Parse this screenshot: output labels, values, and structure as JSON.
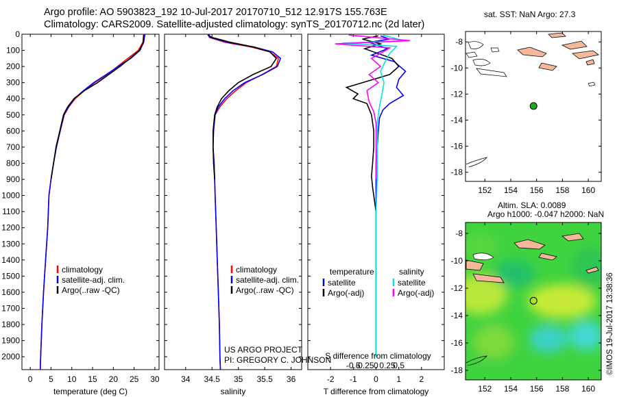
{
  "header": {
    "title_line1": "Argo profile: AO 5903823_192 10-Jul-2017 20170710_512 12.917S 155.763E",
    "title_line2": "Climatology: CARS2009. Satellite-adjusted climatology: synTS_20170712.nc (2d later)"
  },
  "map_top": {
    "label": "sat. SST: NaN Argo: 27.3"
  },
  "map_bottom": {
    "label1": "Altim. SLA: 0.0089",
    "label2": "Argo h1000: -0.047 h2000: NaN"
  },
  "timestamp": "©IMOS 19-Jul-2017 13:38:36",
  "credits": {
    "line1": "US ARGO PROJECT",
    "line2": "PI: GREGORY C. JOHNSON"
  },
  "colors": {
    "climatology": "#ff0000",
    "satellite": "#0000ff",
    "argo": "#000000",
    "sal_sat": "#00e5e5",
    "sal_argo": "#ff00ff",
    "land": "#f4b89a",
    "marker": "#22aa22"
  },
  "chart_data": [
    {
      "type": "line",
      "xlabel": "temperature (deg C)",
      "xlim": [
        -2,
        31
      ],
      "ylim": [
        2080,
        0
      ],
      "xticks": [
        0,
        5,
        10,
        15,
        20,
        25,
        30
      ],
      "yticks": [
        0,
        100,
        200,
        300,
        400,
        500,
        600,
        700,
        800,
        900,
        1000,
        1100,
        1200,
        1300,
        1400,
        1500,
        1600,
        1700,
        1800,
        1900,
        2000
      ],
      "legend": [
        "climatology",
        "satellite-adj. clim.",
        "Argo(..raw -QC)"
      ],
      "series": [
        {
          "name": "climatology",
          "color": "#ff0000",
          "points": [
            [
              27.3,
              0
            ],
            [
              27.1,
              50
            ],
            [
              26.0,
              100
            ],
            [
              23.5,
              150
            ],
            [
              21.0,
              200
            ],
            [
              18.5,
              250
            ],
            [
              15.5,
              300
            ],
            [
              13.0,
              350
            ],
            [
              10.8,
              400
            ],
            [
              9.3,
              450
            ],
            [
              8.2,
              500
            ],
            [
              7.2,
              600
            ],
            [
              6.3,
              700
            ],
            [
              5.6,
              800
            ],
            [
              5.0,
              900
            ],
            [
              4.5,
              1000
            ],
            [
              4.2,
              1200
            ],
            [
              3.7,
              1400
            ],
            [
              3.2,
              1600
            ],
            [
              2.8,
              1800
            ],
            [
              2.5,
              2000
            ],
            [
              2.4,
              2080
            ]
          ]
        },
        {
          "name": "satellite-adj. clim.",
          "color": "#0000ff",
          "points": [
            [
              27.6,
              0
            ],
            [
              27.3,
              50
            ],
            [
              26.4,
              100
            ],
            [
              24.2,
              150
            ],
            [
              21.2,
              200
            ],
            [
              18.3,
              250
            ],
            [
              15.3,
              300
            ],
            [
              12.8,
              350
            ],
            [
              10.6,
              400
            ],
            [
              9.2,
              450
            ],
            [
              8.1,
              500
            ],
            [
              7.2,
              600
            ],
            [
              6.3,
              700
            ],
            [
              5.6,
              800
            ],
            [
              5.0,
              900
            ],
            [
              4.5,
              1000
            ],
            [
              4.2,
              1200
            ],
            [
              3.7,
              1400
            ],
            [
              3.2,
              1600
            ],
            [
              2.8,
              1800
            ],
            [
              2.5,
              2000
            ],
            [
              2.4,
              2080
            ]
          ]
        },
        {
          "name": "Argo(..raw -QC)",
          "color": "#000000",
          "points": [
            [
              27.3,
              5
            ],
            [
              27.2,
              50
            ],
            [
              26.3,
              100
            ],
            [
              24.0,
              150
            ],
            [
              21.6,
              200
            ],
            [
              18.9,
              250
            ],
            [
              16.2,
              300
            ],
            [
              13.0,
              350
            ],
            [
              10.5,
              400
            ],
            [
              9.0,
              450
            ],
            [
              8.0,
              500
            ],
            [
              7.1,
              600
            ],
            [
              6.2,
              700
            ],
            [
              5.6,
              800
            ],
            [
              5.0,
              900
            ]
          ]
        }
      ]
    },
    {
      "type": "line",
      "xlabel": "salinity",
      "xlim": [
        33.6,
        36.2
      ],
      "ylim": [
        2080,
        0
      ],
      "xticks": [
        34,
        34.5,
        35,
        35.5,
        36
      ],
      "legend": [
        "climatology",
        "satellite-adj. clim.",
        "Argo(..raw -QC)"
      ],
      "series": [
        {
          "name": "climatology",
          "color": "#ff0000",
          "points": [
            [
              34.42,
              0
            ],
            [
              34.45,
              20
            ],
            [
              34.75,
              50
            ],
            [
              35.25,
              80
            ],
            [
              35.6,
              110
            ],
            [
              35.76,
              150
            ],
            [
              35.72,
              200
            ],
            [
              35.45,
              250
            ],
            [
              35.15,
              300
            ],
            [
              34.95,
              350
            ],
            [
              34.78,
              400
            ],
            [
              34.65,
              450
            ],
            [
              34.56,
              500
            ],
            [
              34.53,
              600
            ],
            [
              34.52,
              700
            ],
            [
              34.54,
              800
            ],
            [
              34.55,
              900
            ],
            [
              34.56,
              1000
            ],
            [
              34.58,
              1200
            ],
            [
              34.6,
              1400
            ],
            [
              34.62,
              1600
            ],
            [
              34.64,
              1800
            ],
            [
              34.65,
              2000
            ],
            [
              34.66,
              2080
            ]
          ]
        },
        {
          "name": "satellite-adj. clim.",
          "color": "#0000ff",
          "points": [
            [
              34.44,
              0
            ],
            [
              34.47,
              20
            ],
            [
              34.8,
              50
            ],
            [
              35.3,
              80
            ],
            [
              35.65,
              110
            ],
            [
              35.8,
              150
            ],
            [
              35.74,
              200
            ],
            [
              35.46,
              250
            ],
            [
              35.12,
              300
            ],
            [
              34.9,
              350
            ],
            [
              34.74,
              400
            ],
            [
              34.62,
              450
            ],
            [
              34.56,
              500
            ],
            [
              34.53,
              600
            ],
            [
              34.52,
              700
            ],
            [
              34.54,
              800
            ],
            [
              34.55,
              900
            ],
            [
              34.56,
              1000
            ],
            [
              34.58,
              1200
            ],
            [
              34.6,
              1400
            ],
            [
              34.62,
              1600
            ],
            [
              34.64,
              1800
            ],
            [
              34.65,
              2000
            ],
            [
              34.66,
              2080
            ]
          ]
        },
        {
          "name": "Argo(..raw -QC)",
          "color": "#000000",
          "points": [
            [
              34.42,
              5
            ],
            [
              34.5,
              20
            ],
            [
              34.85,
              50
            ],
            [
              35.3,
              80
            ],
            [
              35.6,
              110
            ],
            [
              35.72,
              150
            ],
            [
              35.62,
              200
            ],
            [
              35.28,
              250
            ],
            [
              35.0,
              300
            ],
            [
              34.82,
              350
            ],
            [
              34.68,
              400
            ],
            [
              34.6,
              450
            ],
            [
              34.55,
              500
            ],
            [
              34.52,
              600
            ],
            [
              34.52,
              700
            ],
            [
              34.53,
              800
            ],
            [
              34.55,
              900
            ]
          ]
        }
      ]
    },
    {
      "type": "line",
      "xlabel": "T difference from climatology",
      "xlabel2": "S difference from climatology",
      "xlim": [
        -3,
        3
      ],
      "ylim": [
        2080,
        0
      ],
      "xticks": [
        -2,
        -1,
        0,
        1,
        2
      ],
      "xticks2": [
        [
          -1,
          "-0.5"
        ],
        [
          -0.5,
          "-0.25"
        ],
        [
          0,
          "0"
        ],
        [
          0.5,
          "0.25"
        ],
        [
          1,
          "0.5"
        ]
      ],
      "legend_title_left": "temperature",
      "legend_title_right": "salinity",
      "legend": [
        "satellite",
        "Argo(-adj)",
        "satellite",
        "Argo(-adj)"
      ],
      "series": [
        {
          "name": "satellite",
          "color": "#0000ff",
          "points": [
            [
              0.2,
              10
            ],
            [
              0.6,
              30
            ],
            [
              -0.3,
              50
            ],
            [
              0.5,
              90
            ],
            [
              -0.2,
              130
            ],
            [
              0.8,
              170
            ],
            [
              1.3,
              230
            ],
            [
              1.0,
              280
            ],
            [
              0.9,
              330
            ],
            [
              1.2,
              380
            ],
            [
              0.6,
              430
            ],
            [
              0.3,
              470
            ],
            [
              0.15,
              520
            ],
            [
              0.1,
              600
            ],
            [
              0.05,
              700
            ],
            [
              0.0,
              800
            ],
            [
              0.0,
              2000
            ]
          ]
        },
        {
          "name": "Argo(-adj)",
          "color": "#000000",
          "points": [
            [
              0.1,
              10
            ],
            [
              -0.6,
              30
            ],
            [
              0.2,
              60
            ],
            [
              -0.5,
              90
            ],
            [
              0.7,
              150
            ],
            [
              1.0,
              200
            ],
            [
              0.6,
              250
            ],
            [
              -1.3,
              330
            ],
            [
              -0.8,
              370
            ],
            [
              -1.0,
              400
            ],
            [
              -0.4,
              430
            ],
            [
              -0.2,
              500
            ],
            [
              -0.1,
              600
            ],
            [
              -0.1,
              700
            ],
            [
              -0.15,
              800
            ],
            [
              -0.2,
              880
            ],
            [
              -0.15,
              950
            ],
            [
              -0.1,
              1000
            ],
            [
              0.0,
              1100
            ]
          ]
        },
        {
          "name": "salinity satellite",
          "color": "#00e5e5",
          "points": [
            [
              0.3,
              5
            ],
            [
              1.2,
              40
            ],
            [
              -1.5,
              55
            ],
            [
              0.9,
              75
            ],
            [
              0.6,
              120
            ],
            [
              0.4,
              170
            ],
            [
              0.2,
              230
            ],
            [
              0.35,
              300
            ],
            [
              0.25,
              380
            ],
            [
              0.15,
              450
            ],
            [
              0.05,
              550
            ],
            [
              0.05,
              700
            ],
            [
              0.05,
              900
            ],
            [
              0.0,
              1100
            ],
            [
              0.0,
              2000
            ]
          ]
        },
        {
          "name": "salinity Argo(-adj)",
          "color": "#ff00ff",
          "points": [
            [
              -1.2,
              5
            ],
            [
              1.5,
              40
            ],
            [
              -1.8,
              60
            ],
            [
              0.6,
              85
            ],
            [
              0.3,
              110
            ],
            [
              -0.2,
              150
            ],
            [
              0.2,
              200
            ],
            [
              -0.3,
              250
            ],
            [
              0.1,
              300
            ],
            [
              -0.4,
              350
            ],
            [
              -0.3,
              420
            ],
            [
              -0.1,
              480
            ],
            [
              0.0,
              550
            ],
            [
              0.0,
              700
            ],
            [
              0.0,
              900
            ]
          ]
        }
      ]
    },
    {
      "type": "scatter",
      "xlim": [
        150.5,
        161
      ],
      "ylim": [
        -18.7,
        -7.2
      ],
      "xticks": [
        152,
        154,
        156,
        158,
        160
      ],
      "yticks": [
        -8,
        -10,
        -12,
        -14,
        -16,
        -18
      ],
      "points": [
        [
          155.763,
          -12.917
        ]
      ]
    },
    {
      "type": "heatmap",
      "xlim": [
        150.5,
        161
      ],
      "ylim": [
        -18.7,
        -7.2
      ],
      "xticks": [
        152,
        154,
        156,
        158,
        160
      ],
      "yticks": [
        -8,
        -10,
        -12,
        -14,
        -16,
        -18
      ],
      "points": [
        [
          155.763,
          -12.917
        ]
      ]
    }
  ]
}
